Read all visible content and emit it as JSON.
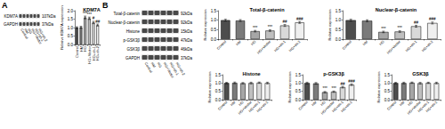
{
  "panels": [
    {
      "label": "A",
      "blot": {
        "lanes": [
          "Control",
          "HM",
          "HG",
          "HG+Vector",
          "HG+sh-1",
          "HG+sh-2"
        ],
        "bands": [
          {
            "name": "KDM7A",
            "size": "107kDa"
          },
          {
            "name": "GAPDH",
            "size": "37kDa"
          }
        ]
      }
    },
    {
      "label": "B",
      "blot": {
        "lanes": [
          "Control",
          "HM",
          "HG",
          "HG+Vector",
          "HG+sh-1",
          "HG+sh-2"
        ],
        "bands": [
          {
            "name": "Total-β-catenin",
            "size": "92kDa"
          },
          {
            "name": "Nuclear-β-catenin",
            "size": "92kDa"
          },
          {
            "name": "Histone",
            "size": "15kDa"
          },
          {
            "name": "p-GSK3β",
            "size": "47kDa"
          },
          {
            "name": "GSK3β",
            "size": "46kDa"
          },
          {
            "name": "GAPDH",
            "size": "37kDa"
          }
        ]
      }
    }
  ],
  "chart_data": [
    {
      "type": "bar",
      "title": "KDM7A",
      "y_label": "Relative KDM7A expression",
      "categories": [
        "Control",
        "HM",
        "HG",
        "HG+Vector",
        "HG+sh-1",
        "HG+sh-2"
      ],
      "values": [
        1.0,
        1.02,
        1.6,
        1.55,
        1.3,
        1.15
      ],
      "errors": [
        0.05,
        0.06,
        0.08,
        0.07,
        0.07,
        0.06
      ],
      "significance": [
        null,
        null,
        "***",
        "***",
        "#",
        "##"
      ],
      "colors": [
        "#4d4d4d",
        "#7a7a7a",
        "#a6a6a6",
        "#bfbfbf",
        "#d9d9d9",
        "#efefef"
      ],
      "ylim": [
        0,
        2
      ],
      "yticks": [
        {
          "value": 0,
          "label": "0.0"
        },
        {
          "value": 0.5,
          "label": "0.5"
        },
        {
          "value": 1,
          "label": "1.0"
        },
        {
          "value": 1.5,
          "label": "1.5"
        },
        {
          "value": 2,
          "label": "2.0"
        }
      ],
      "grid": false
    },
    {
      "type": "bar",
      "title": "Total-β-catenin",
      "y_label": "Relative expression",
      "categories": [
        "Control",
        "HM",
        "HG",
        "HG+Vector",
        "HG+sh-1",
        "HG+sh-2"
      ],
      "values": [
        1.0,
        0.98,
        0.42,
        0.45,
        0.72,
        0.88
      ],
      "errors": [
        0.05,
        0.05,
        0.04,
        0.04,
        0.05,
        0.05
      ],
      "significance": [
        null,
        null,
        "***",
        "***",
        "##",
        "###"
      ],
      "colors": [
        "#4d4d4d",
        "#7a7a7a",
        "#a6a6a6",
        "#bfbfbf",
        "#d9d9d9",
        "#efefef"
      ],
      "ylim": [
        0,
        1.5
      ],
      "yticks": [
        {
          "value": 0,
          "label": "0.0"
        },
        {
          "value": 0.5,
          "label": "0.5"
        },
        {
          "value": 1,
          "label": "1.0"
        },
        {
          "value": 1.5,
          "label": "1.5"
        }
      ],
      "grid": false
    },
    {
      "type": "bar",
      "title": "Nuclear-β-catenin",
      "y_label": "Relative expression",
      "categories": [
        "Control",
        "HM",
        "HG",
        "HG+Vector",
        "HG+sh-1",
        "HG+sh-2"
      ],
      "values": [
        1.0,
        0.97,
        0.38,
        0.4,
        0.68,
        0.85
      ],
      "errors": [
        0.05,
        0.05,
        0.04,
        0.04,
        0.05,
        0.05
      ],
      "significance": [
        null,
        null,
        "***",
        "***",
        "##",
        "###"
      ],
      "colors": [
        "#4d4d4d",
        "#7a7a7a",
        "#a6a6a6",
        "#bfbfbf",
        "#d9d9d9",
        "#efefef"
      ],
      "ylim": [
        0,
        1.5
      ],
      "yticks": [
        {
          "value": 0,
          "label": "0.0"
        },
        {
          "value": 0.5,
          "label": "0.5"
        },
        {
          "value": 1,
          "label": "1.0"
        },
        {
          "value": 1.5,
          "label": "1.5"
        }
      ],
      "grid": false
    },
    {
      "type": "bar",
      "title": "Histone",
      "y_label": "Relative expression",
      "categories": [
        "Control",
        "HM",
        "HG",
        "HG+Vector",
        "HG+sh-1",
        "HG+sh-2"
      ],
      "values": [
        1.0,
        1.01,
        0.99,
        1.0,
        1.02,
        1.0
      ],
      "errors": [
        0.04,
        0.05,
        0.04,
        0.05,
        0.04,
        0.05
      ],
      "significance": [
        null,
        null,
        null,
        null,
        null,
        null
      ],
      "colors": [
        "#4d4d4d",
        "#7a7a7a",
        "#a6a6a6",
        "#bfbfbf",
        "#d9d9d9",
        "#efefef"
      ],
      "ylim": [
        0,
        1.5
      ],
      "yticks": [
        {
          "value": 0,
          "label": "0.0"
        },
        {
          "value": 0.5,
          "label": "0.5"
        },
        {
          "value": 1,
          "label": "1.0"
        },
        {
          "value": 1.5,
          "label": "1.5"
        }
      ],
      "grid": false
    },
    {
      "type": "bar",
      "title": "p-GSK3β",
      "y_label": "Relative expression",
      "categories": [
        "Control",
        "HM",
        "HG",
        "HG+Vector",
        "HG+sh-1",
        "HG+sh-2"
      ],
      "values": [
        1.0,
        0.98,
        0.45,
        0.48,
        0.75,
        0.9
      ],
      "errors": [
        0.05,
        0.05,
        0.04,
        0.04,
        0.05,
        0.05
      ],
      "significance": [
        null,
        null,
        "***",
        "***",
        "##",
        "###"
      ],
      "colors": [
        "#4d4d4d",
        "#7a7a7a",
        "#a6a6a6",
        "#bfbfbf",
        "#d9d9d9",
        "#efefef"
      ],
      "ylim": [
        0,
        1.5
      ],
      "yticks": [
        {
          "value": 0,
          "label": "0.0"
        },
        {
          "value": 0.5,
          "label": "0.5"
        },
        {
          "value": 1,
          "label": "1.0"
        },
        {
          "value": 1.5,
          "label": "1.5"
        }
      ],
      "grid": false
    },
    {
      "type": "bar",
      "title": "GSK3β",
      "y_label": "Relative expression",
      "categories": [
        "Control",
        "HM",
        "HG",
        "HG+Vector",
        "HG+sh-1",
        "HG+sh-2"
      ],
      "values": [
        1.0,
        1.0,
        1.02,
        0.99,
        1.01,
        1.0
      ],
      "errors": [
        0.04,
        0.05,
        0.04,
        0.05,
        0.04,
        0.05
      ],
      "significance": [
        null,
        null,
        null,
        null,
        null,
        null
      ],
      "colors": [
        "#4d4d4d",
        "#7a7a7a",
        "#a6a6a6",
        "#bfbfbf",
        "#d9d9d9",
        "#efefef"
      ],
      "ylim": [
        0,
        1.5
      ],
      "yticks": [
        {
          "value": 0,
          "label": "0.0"
        },
        {
          "value": 0.5,
          "label": "0.5"
        },
        {
          "value": 1,
          "label": "1.0"
        },
        {
          "value": 1.5,
          "label": "1.5"
        }
      ],
      "grid": false
    }
  ]
}
